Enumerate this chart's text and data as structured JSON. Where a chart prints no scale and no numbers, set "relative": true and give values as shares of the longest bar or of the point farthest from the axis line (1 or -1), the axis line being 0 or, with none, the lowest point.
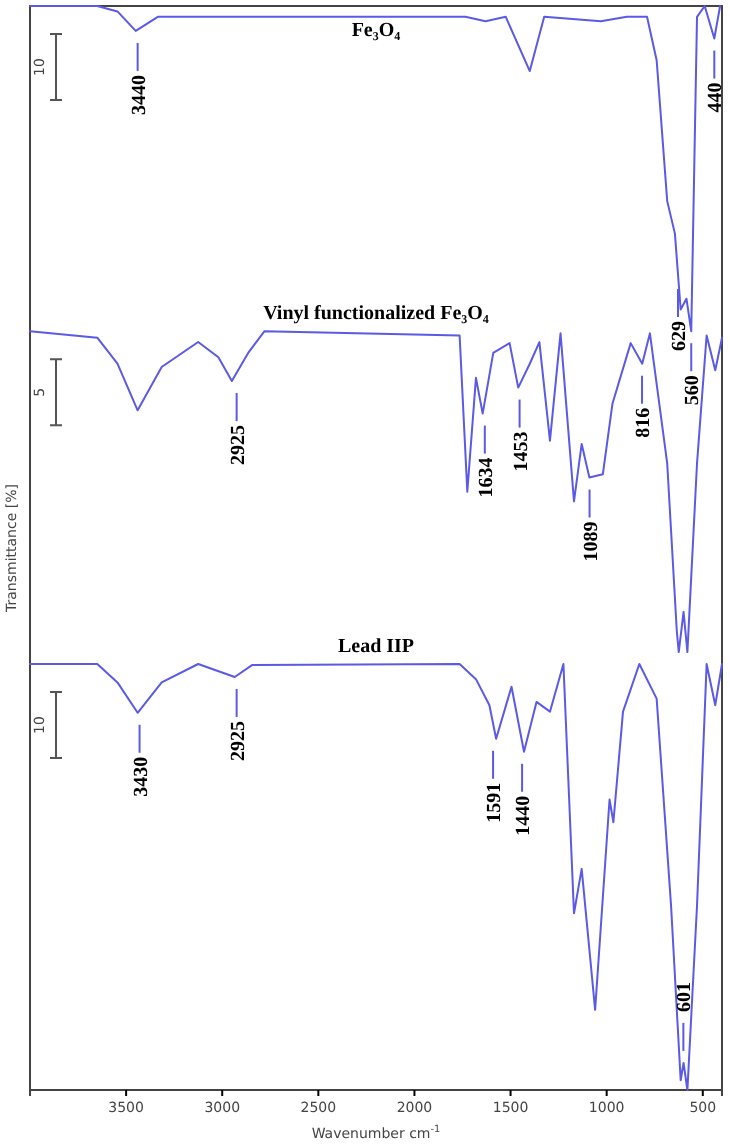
{
  "chart_data": {
    "type": "line",
    "relative": true,
    "xlabel": "Wavenumber cm$^{-1}$",
    "ylabel": "Transmittance [%]",
    "xlim": [
      4000,
      400
    ],
    "xticks": [
      3500,
      3000,
      2500,
      2000,
      1500,
      1000,
      500
    ],
    "grid": false,
    "legend": false,
    "marker": "none",
    "line_style": "solid",
    "series": [
      {
        "name": "Fe₃O₄",
        "color": "#5a5ae6",
        "x": [
          4000,
          3650,
          3545,
          3450,
          3335,
          1735,
          1630,
          1525,
          1400,
          1325,
          1030,
          895,
          790,
          740,
          685,
          645,
          615,
          585,
          560,
          530,
          490,
          440,
          410
        ],
        "values": [
          1.0,
          1.0,
          0.995,
          0.977,
          0.99,
          0.99,
          0.986,
          0.99,
          0.94,
          0.99,
          0.986,
          0.99,
          0.99,
          0.95,
          0.82,
          0.79,
          0.72,
          0.73,
          0.7,
          0.99,
          1.0,
          0.97,
          1.0
        ]
      },
      {
        "name": "Vinyl functionalized Fe₃O₄",
        "color": "#5a5ae6",
        "x": [
          4000,
          3650,
          3545,
          3440,
          3315,
          3125,
          3020,
          2950,
          2865,
          2780,
          1765,
          1725,
          1680,
          1645,
          1590,
          1505,
          1460,
          1400,
          1350,
          1295,
          1240,
          1170,
          1130,
          1090,
          1020,
          970,
          875,
          815,
          775,
          685,
          635,
          625,
          600,
          580,
          530,
          480,
          435,
          400
        ],
        "values": [
          0.7,
          0.694,
          0.67,
          0.627,
          0.667,
          0.69,
          0.676,
          0.654,
          0.68,
          0.7,
          0.696,
          0.552,
          0.657,
          0.624,
          0.68,
          0.689,
          0.648,
          0.67,
          0.69,
          0.599,
          0.698,
          0.543,
          0.596,
          0.565,
          0.568,
          0.633,
          0.689,
          0.67,
          0.698,
          0.578,
          0.423,
          0.404,
          0.441,
          0.404,
          0.578,
          0.696,
          0.664,
          0.694
        ]
      },
      {
        "name": "Lead IIP",
        "color": "#5a5ae6",
        "x": [
          4000,
          3650,
          3545,
          3440,
          3315,
          3125,
          2935,
          2845,
          1765,
          1680,
          1610,
          1575,
          1495,
          1430,
          1365,
          1295,
          1225,
          1170,
          1130,
          1060,
          985,
          965,
          915,
          830,
          740,
          665,
          615,
          600,
          580,
          530,
          480,
          435,
          400
        ],
        "values": [
          0.393,
          0.393,
          0.376,
          0.348,
          0.376,
          0.393,
          0.381,
          0.392,
          0.393,
          0.379,
          0.355,
          0.324,
          0.372,
          0.312,
          0.358,
          0.349,
          0.393,
          0.163,
          0.204,
          0.074,
          0.268,
          0.247,
          0.349,
          0.393,
          0.361,
          0.17,
          0.009,
          0.025,
          0,
          0.17,
          0.393,
          0.355,
          0.393
        ]
      }
    ],
    "annotations": [
      "10",
      "5",
      "10",
      {
        "text": "3440",
        "x": 3440,
        "y": 0.977
      },
      {
        "text": "629",
        "x": 629,
        "y": 0.75
      },
      {
        "text": "560",
        "x": 560,
        "y": 0.7
      },
      {
        "text": "440",
        "x": 440,
        "y": 0.97
      },
      {
        "text": "2925",
        "x": 2925,
        "y": 0.654
      },
      {
        "text": "1634",
        "x": 1634,
        "y": 0.624
      },
      {
        "text": "1453",
        "x": 1453,
        "y": 0.648
      },
      {
        "text": "1089",
        "x": 1089,
        "y": 0.565
      },
      {
        "text": "816",
        "x": 816,
        "y": 0.67
      },
      {
        "text": "3430",
        "x": 3430,
        "y": 0.348
      },
      {
        "text": "2925",
        "x": 2925,
        "y": 0.381
      },
      {
        "text": "1591",
        "x": 1591,
        "y": 0.324
      },
      {
        "text": "1440",
        "x": 1440,
        "y": 0.312
      },
      {
        "text": "601",
        "x": 601,
        "y": 0.025
      }
    ]
  }
}
